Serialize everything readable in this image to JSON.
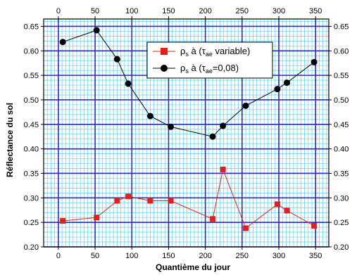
{
  "chart_data": {
    "type": "line",
    "xlabel": "Quantième du jour",
    "ylabel": "Réflectance du sol",
    "xlim": [
      -20,
      368
    ],
    "ylim": [
      0.2,
      0.665
    ],
    "x_ticks": [
      0,
      50,
      100,
      150,
      200,
      250,
      300,
      350
    ],
    "y_ticks": [
      0.2,
      0.25,
      0.3,
      0.35,
      0.4,
      0.45,
      0.5,
      0.55,
      0.6,
      0.65
    ],
    "x_tick_labels": [
      "0",
      "50",
      "100",
      "150",
      "200",
      "250",
      "300",
      "350"
    ],
    "y_tick_labels": [
      "0.20",
      "0.25",
      "0.30",
      "0.35",
      "0.40",
      "0.45",
      "0.50",
      "0.55",
      "0.60",
      "0.65"
    ],
    "top_axis": true,
    "right_axis": true,
    "grid": true,
    "legend_position": "top-center",
    "series": [
      {
        "name": "ρs à (τae variable)",
        "legend_main": "ρ",
        "legend_sub1": "s",
        "legend_mid": " à (τ",
        "legend_sub2": "ae",
        "legend_tail": " variable)",
        "color": "#e02020",
        "marker": "square",
        "x": [
          6,
          52,
          80,
          95,
          125,
          153,
          210,
          224,
          255,
          298,
          311,
          348
        ],
        "y": [
          0.253,
          0.26,
          0.294,
          0.303,
          0.294,
          0.294,
          0.257,
          0.358,
          0.238,
          0.287,
          0.274,
          0.243
        ]
      },
      {
        "name": "ρs à (τae=0,08)",
        "legend_main": "ρ",
        "legend_sub1": "s",
        "legend_mid": " à (τ",
        "legend_sub2": "ae",
        "legend_tail": "=0,08)",
        "color": "#000000",
        "marker": "circle",
        "x": [
          6,
          52,
          80,
          95,
          125,
          153,
          210,
          224,
          255,
          298,
          311,
          348
        ],
        "y": [
          0.618,
          0.642,
          0.583,
          0.533,
          0.467,
          0.445,
          0.425,
          0.447,
          0.488,
          0.522,
          0.535,
          0.577
        ]
      }
    ]
  },
  "colors": {
    "major_grid": "#2b2bbf",
    "minor_grid": "#5ad0e6",
    "frame": "#000000"
  }
}
